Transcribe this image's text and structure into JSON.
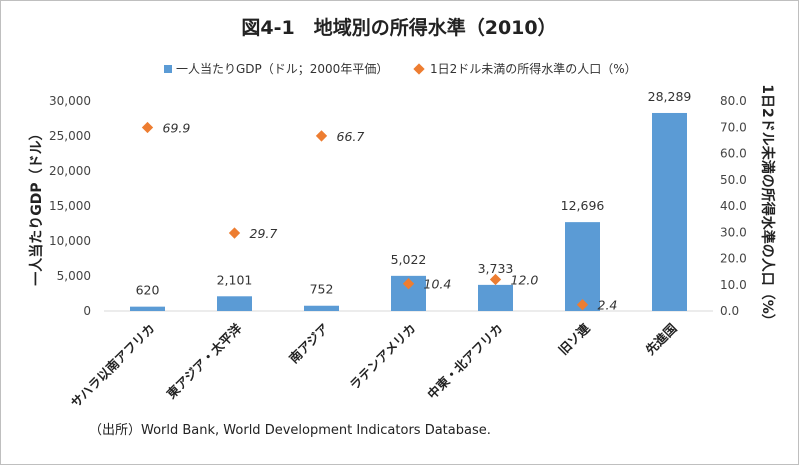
{
  "chart_data": {
    "type": "bar",
    "title": "図4-1　地域別の所得水準（2010）",
    "categories": [
      "サハラ以南アフリカ",
      "東アジア・太平洋",
      "南アジア",
      "ラテンアメリカ",
      "中東・北アフリカ",
      "旧ソ連",
      "先進国"
    ],
    "series": [
      {
        "name": "一人当たりGDP（ドル；2000年平価）",
        "type": "bar",
        "axis": "left",
        "color": "#5b9bd5",
        "values": [
          620,
          2101,
          752,
          5022,
          3733,
          12696,
          28289
        ],
        "labels": [
          "620",
          "2,101",
          "752",
          "5,022",
          "3,733",
          "12,696",
          "28,289"
        ]
      },
      {
        "name": "1日2ドル未満の所得水準の人口（%）",
        "type": "scatter",
        "axis": "right",
        "color": "#ed7d31",
        "values": [
          69.9,
          29.7,
          66.7,
          10.4,
          12.0,
          2.4,
          null
        ],
        "labels": [
          "69.9",
          "29.7",
          "66.7",
          "10.4",
          "12.0",
          "2.4",
          null
        ]
      }
    ],
    "ylabel": "一人当たりGDP（ドル）",
    "ylim": [
      0,
      30000
    ],
    "yticks": [
      "0",
      "5,000",
      "10,000",
      "15,000",
      "20,000",
      "25,000",
      "30,000"
    ],
    "y2label": "1日2ドル未満の所得水準の人口（%）",
    "y2lim": [
      0,
      80
    ],
    "y2ticks": [
      "0.0",
      "10.0",
      "20.0",
      "30.0",
      "40.0",
      "50.0",
      "60.0",
      "70.0",
      "80.0"
    ],
    "grid": false,
    "legend": "top"
  },
  "source": "（出所）World Bank, World Development Indicators Database."
}
